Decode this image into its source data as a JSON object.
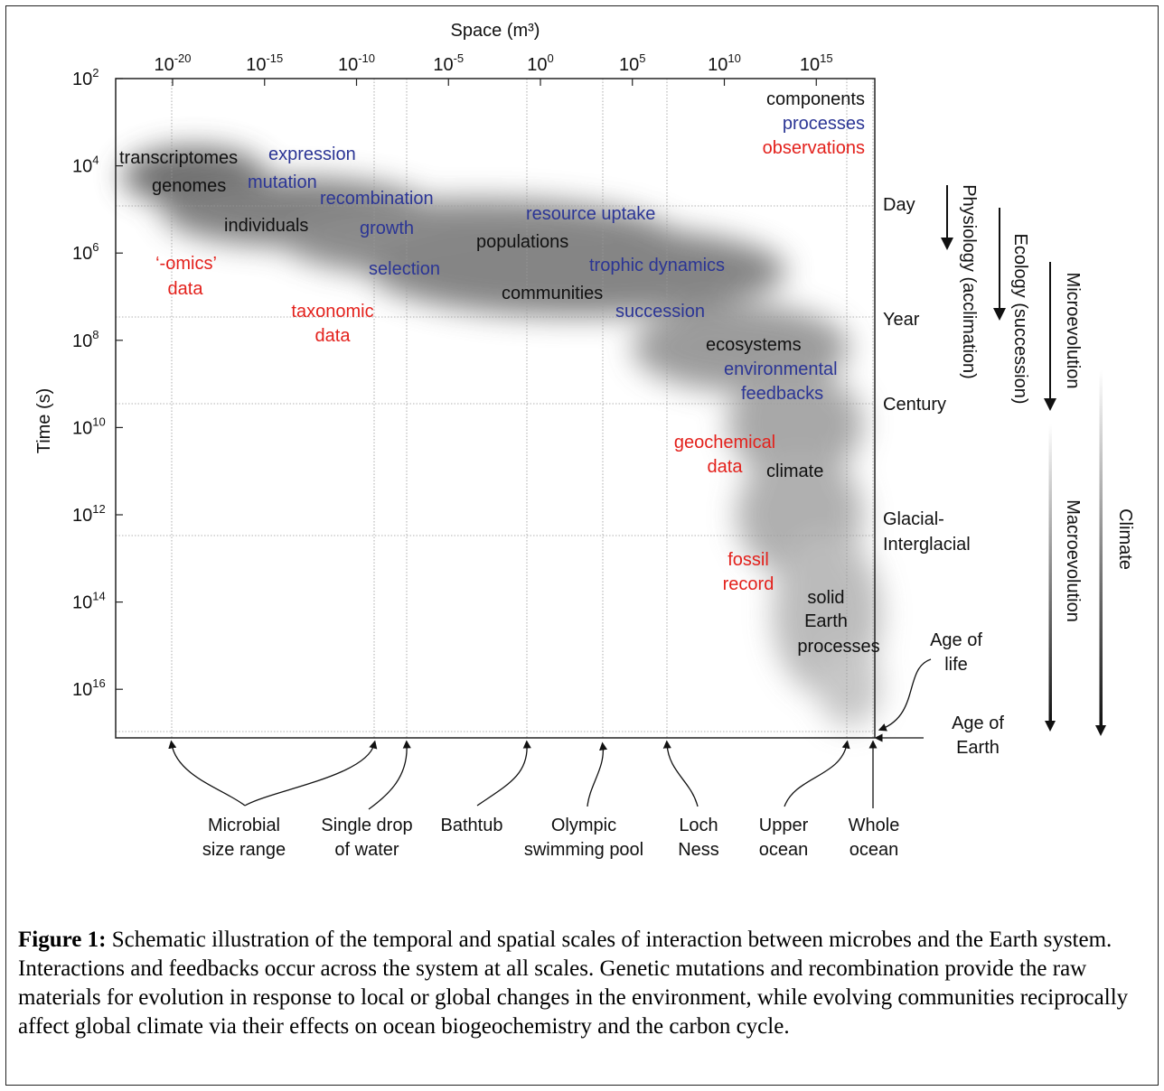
{
  "x_axis": {
    "title": "Space (m³)",
    "ticks": [
      {
        "base": "10",
        "exp": "-20",
        "log": -20
      },
      {
        "base": "10",
        "exp": "-15",
        "log": -15
      },
      {
        "base": "10",
        "exp": "-10",
        "log": -10
      },
      {
        "base": "10",
        "exp": "-5",
        "log": -5
      },
      {
        "base": "10",
        "exp": "0",
        "log": 0
      },
      {
        "base": "10",
        "exp": "5",
        "log": 5
      },
      {
        "base": "10",
        "exp": "10",
        "log": 10
      },
      {
        "base": "10",
        "exp": "15",
        "log": 15
      }
    ]
  },
  "y_axis": {
    "title": "Time (s)",
    "ticks": [
      {
        "base": "10",
        "exp": "2",
        "log": 2
      },
      {
        "base": "10",
        "exp": "4",
        "log": 4
      },
      {
        "base": "10",
        "exp": "6",
        "log": 6
      },
      {
        "base": "10",
        "exp": "8",
        "log": 8
      },
      {
        "base": "10",
        "exp": "10",
        "log": 10
      },
      {
        "base": "10",
        "exp": "12",
        "log": 12
      },
      {
        "base": "10",
        "exp": "14",
        "log": 14
      },
      {
        "base": "10",
        "exp": "16",
        "log": 16
      }
    ]
  },
  "legend": {
    "components": "components",
    "processes": "processes",
    "observations": "observations"
  },
  "colors": {
    "component": "#111111",
    "process": "#2b3595",
    "observation": "#e3211c"
  },
  "components": [
    "transcriptomes",
    "genomes",
    "individuals",
    "populations",
    "communities",
    "ecosystems",
    "climate",
    "solid",
    "Earth",
    "processes"
  ],
  "processes": [
    "expression",
    "mutation",
    "recombination",
    "growth",
    "resource uptake",
    "selection",
    "trophic dynamics",
    "succession",
    "environmental",
    "feedbacks"
  ],
  "observations": [
    "‘-omics’",
    "data",
    "taxonomic",
    "data",
    "geochemical",
    "data",
    "fossil",
    "record"
  ],
  "time_markers": [
    "Day",
    "Year",
    "Century",
    "Glacial-",
    "Interglacial",
    "Age of",
    "life",
    "Age of",
    "Earth"
  ],
  "scale_arrows": [
    "Physiology (acclimation)",
    "Ecology (succession)",
    "Microevolution",
    "Macroevolution",
    "Climate"
  ],
  "space_refs": [
    [
      "Microbial",
      "size range"
    ],
    [
      "Single drop",
      "of water"
    ],
    [
      "Bathtub"
    ],
    [
      "Olympic",
      "swimming pool"
    ],
    [
      "Loch",
      "Ness"
    ],
    [
      "Upper",
      "ocean"
    ],
    [
      "Whole",
      "ocean"
    ]
  ],
  "caption": {
    "label": "Figure 1:",
    "text": " Schematic illustration of the temporal and spatial scales of interaction between microbes and the Earth system. Interactions and feedbacks occur across the system at all scales. Genetic mutations and recombination provide the raw materials for evolution in response to local or global changes in the environment, while evolving communities reciprocally affect global climate via their effects on ocean biogeochemistry and the carbon cycle."
  }
}
